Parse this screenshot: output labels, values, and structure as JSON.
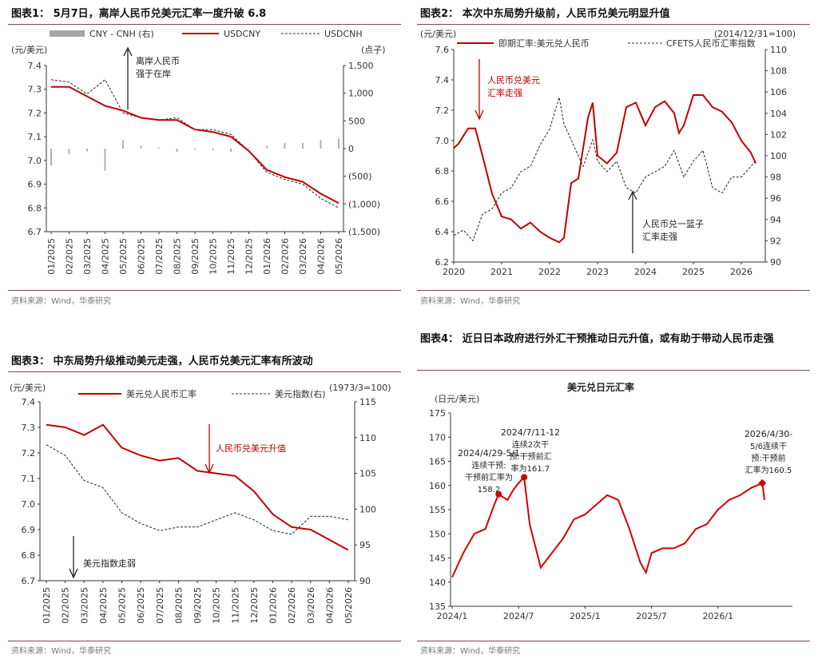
{
  "chart_data": [
    {
      "type": "line",
      "title": "图表1：  5月7日，离岸人民币兑美元汇率一度升破 6.8",
      "legend": [
        "CNY - CNH (右)",
        "USDCNY",
        "USDCNH"
      ],
      "ylabel": "(元/美元)",
      "y2label": "(点子)",
      "categories": [
        "01/2025",
        "02/2025",
        "03/2025",
        "04/2025",
        "05/2025",
        "06/2025",
        "07/2025",
        "08/2025",
        "09/2025",
        "10/2025",
        "11/2025",
        "12/2025",
        "01/2026",
        "02/2026",
        "03/2026",
        "04/2026",
        "05/2026"
      ],
      "ylim": [
        6.7,
        7.4
      ],
      "yticks": [
        "6.7",
        "6.8",
        "6.9",
        "7.0",
        "7.1",
        "7.2",
        "7.3",
        "7.4"
      ],
      "y2lim": [
        -1500,
        1500
      ],
      "y2ticks": [
        "(1,500)",
        "(1,000)",
        "(500)",
        "0",
        "500",
        "1,000",
        "1,500"
      ],
      "annotation": [
        "离岸人民币",
        "强于在岸"
      ],
      "source": "资料来源：Wind，华泰研究",
      "series": [
        {
          "name": "USDCNY",
          "color": "#c00000",
          "style": "solid",
          "axis": "left",
          "values": [
            7.31,
            7.31,
            7.27,
            7.23,
            7.21,
            7.18,
            7.17,
            7.17,
            7.13,
            7.12,
            7.1,
            7.04,
            6.96,
            6.93,
            6.91,
            6.86,
            6.82
          ]
        },
        {
          "name": "USDCNH",
          "color": "#222222",
          "style": "dashed",
          "axis": "left",
          "values": [
            7.34,
            7.33,
            7.28,
            7.34,
            7.2,
            7.18,
            7.17,
            7.18,
            7.13,
            7.13,
            7.11,
            7.04,
            6.95,
            6.92,
            6.9,
            6.84,
            6.8
          ]
        },
        {
          "name": "CNY - CNH (右)",
          "color": "#a6a6a6",
          "style": "bars",
          "axis": "right",
          "values": [
            -300,
            -100,
            -50,
            -400,
            150,
            50,
            20,
            -60,
            -20,
            -30,
            -60,
            20,
            50,
            100,
            100,
            150,
            180
          ]
        }
      ]
    },
    {
      "type": "line",
      "title": "图表2：  本次中东局势升级前，人民币兑美元明显升值",
      "legend": [
        "即期汇率:美元兑人民币",
        "CFETS人民币汇率指数"
      ],
      "ylabel": "(元/美元)",
      "y2label": "(2014/12/31=100)",
      "categories": [
        "2020",
        "2021",
        "2022",
        "2023",
        "2024",
        "2025",
        "2026"
      ],
      "ylim": [
        6.2,
        7.6
      ],
      "yticks": [
        "6.2",
        "6.4",
        "6.6",
        "6.8",
        "7.0",
        "7.2",
        "7.4",
        "7.6"
      ],
      "y2lim": [
        90,
        110
      ],
      "y2ticks": [
        "90",
        "92",
        "94",
        "96",
        "98",
        "100",
        "102",
        "104",
        "106",
        "108",
        "110"
      ],
      "annotations": [
        [
          "人民币兑美元",
          "汇率走强"
        ],
        [
          "人民币兑一篮子",
          "汇率走强"
        ]
      ],
      "source": "资料来源：Wind，华泰研究",
      "series": [
        {
          "name": "即期汇率:美元兑人民币",
          "color": "#c00000",
          "style": "solid",
          "axis": "left",
          "x": [
            2020.0,
            2020.1,
            2020.3,
            2020.45,
            2020.6,
            2020.8,
            2021.0,
            2021.2,
            2021.4,
            2021.6,
            2021.8,
            2022.0,
            2022.2,
            2022.3,
            2022.45,
            2022.6,
            2022.8,
            2022.9,
            2023.0,
            2023.2,
            2023.4,
            2023.6,
            2023.8,
            2024.0,
            2024.2,
            2024.4,
            2024.6,
            2024.7,
            2024.8,
            2025.0,
            2025.2,
            2025.4,
            2025.6,
            2025.8,
            2026.0,
            2026.2,
            2026.3
          ],
          "values": [
            6.95,
            6.98,
            7.08,
            7.08,
            6.9,
            6.65,
            6.5,
            6.48,
            6.42,
            6.46,
            6.4,
            6.36,
            6.33,
            6.36,
            6.72,
            6.75,
            7.15,
            7.25,
            6.9,
            6.85,
            6.92,
            7.22,
            7.25,
            7.1,
            7.22,
            7.26,
            7.18,
            7.05,
            7.1,
            7.3,
            7.3,
            7.22,
            7.19,
            7.12,
            7.0,
            6.92,
            6.85
          ]
        },
        {
          "name": "CFETS人民币汇率指数",
          "color": "#222222",
          "style": "dashed",
          "axis": "right",
          "x": [
            2020.0,
            2020.2,
            2020.4,
            2020.6,
            2020.8,
            2021.0,
            2021.2,
            2021.4,
            2021.6,
            2021.8,
            2022.0,
            2022.2,
            2022.3,
            2022.5,
            2022.7,
            2022.9,
            2023.0,
            2023.2,
            2023.4,
            2023.6,
            2023.8,
            2024.0,
            2024.2,
            2024.4,
            2024.6,
            2024.8,
            2025.0,
            2025.2,
            2025.4,
            2025.6,
            2025.8,
            2026.0,
            2026.2,
            2026.3
          ],
          "values": [
            92.5,
            93.0,
            92.0,
            94.5,
            95.0,
            96.5,
            97.0,
            98.5,
            99.0,
            101.0,
            102.5,
            105.5,
            103.0,
            101.0,
            99.0,
            101.5,
            99.5,
            98.5,
            99.5,
            97.0,
            96.5,
            98.0,
            98.5,
            99.0,
            100.5,
            98.0,
            99.5,
            100.5,
            97.0,
            96.5,
            98.0,
            98.0,
            99.0,
            99.5
          ]
        }
      ]
    },
    {
      "type": "line",
      "title": "图表3：  中东局势升级推动美元走强，人民币兑美元汇率有所波动",
      "legend": [
        "美元兑人民币汇率",
        "美元指数(右)"
      ],
      "ylabel": "(元/美元)",
      "y2label": "(1973/3=100)",
      "categories": [
        "01/2025",
        "02/2025",
        "03/2025",
        "04/2025",
        "05/2025",
        "06/2025",
        "07/2025",
        "08/2025",
        "09/2025",
        "10/2025",
        "11/2025",
        "12/2025",
        "01/2026",
        "02/2026",
        "03/2026",
        "04/2026",
        "05/2026"
      ],
      "ylim": [
        6.7,
        7.4
      ],
      "yticks": [
        "6.7",
        "6.8",
        "6.9",
        "7.0",
        "7.1",
        "7.2",
        "7.3",
        "7.4"
      ],
      "y2lim": [
        90,
        115
      ],
      "y2ticks": [
        "90",
        "95",
        "100",
        "105",
        "110",
        "115"
      ],
      "annotations": [
        "人民币兑美元升值",
        "美元指数走弱"
      ],
      "source": "资料来源：Wind，华泰研究",
      "series": [
        {
          "name": "美元兑人民币汇率",
          "color": "#c00000",
          "style": "solid",
          "axis": "left",
          "values": [
            7.31,
            7.3,
            7.27,
            7.31,
            7.22,
            7.19,
            7.17,
            7.18,
            7.13,
            7.12,
            7.11,
            7.05,
            6.96,
            6.91,
            6.9,
            6.86,
            6.82
          ]
        },
        {
          "name": "美元指数(右)",
          "color": "#222222",
          "style": "dashed",
          "axis": "right",
          "values": [
            109,
            107.5,
            104,
            103,
            99.5,
            98,
            97,
            97.5,
            97.5,
            98.5,
            99.5,
            98.5,
            97,
            96.5,
            99,
            99,
            98.5
          ]
        }
      ]
    },
    {
      "type": "line",
      "title": "图表4：  近日日本政府进行外汇干预推动日元升值，或有助于带动人民币走强",
      "chart_title": "美元兑日元汇率",
      "ylabel": "(日元/美元)",
      "categories": [
        "2024/1",
        "2024/7",
        "2025/1",
        "2025/7",
        "2026/1"
      ],
      "ylim": [
        135,
        175
      ],
      "yticks": [
        "135",
        "140",
        "145",
        "150",
        "155",
        "160",
        "165",
        "170",
        "175"
      ],
      "annotations": [
        [
          "2024/4/29-5/1",
          "连续干预:",
          "干预前汇率为",
          "158.2"
        ],
        [
          "2024/7/11-12",
          "连续2次干",
          "预:干预前汇",
          "率为161.7"
        ],
        [
          "2026/4/30-",
          "5/6连续干",
          "预:干预前",
          "汇率为160.5"
        ]
      ],
      "source": "资料来源：Wind，华泰研究",
      "series": [
        {
          "name": "美元兑日元汇率",
          "color": "#d40000",
          "style": "solid",
          "x": [
            0,
            1,
            2,
            3,
            3.8,
            4.2,
            5,
            5.5,
            6,
            6.5,
            7,
            8,
            9,
            10,
            10.5,
            11,
            12,
            13,
            14,
            15,
            16,
            17,
            17.5,
            18,
            19,
            20,
            21,
            22,
            23,
            24,
            25,
            26,
            27,
            28,
            28.2
          ],
          "values": [
            141,
            146,
            150,
            151,
            156,
            158.2,
            157,
            159,
            160.5,
            161.7,
            152,
            143,
            146,
            149,
            151,
            153,
            154,
            156,
            158,
            157,
            151,
            144,
            142,
            146,
            147,
            147,
            148,
            151,
            152,
            155,
            157,
            158,
            159.5,
            160.5,
            157
          ]
        }
      ]
    }
  ],
  "page": {
    "titles": [
      "图表1：  5月7日，离岸人民币兑美元汇率一度升破 6.8",
      "图表2：  本次中东局势升级前，人民币兑美元明显升值",
      "图表3：  中东局势升级推动美元走强，人民币兑美元汇率有所波动",
      "图表4：  近日日本政府进行外汇干预推动日元升值，或有助于带动人民币走强"
    ],
    "source": "资料来源：Wind，华泰研究"
  }
}
